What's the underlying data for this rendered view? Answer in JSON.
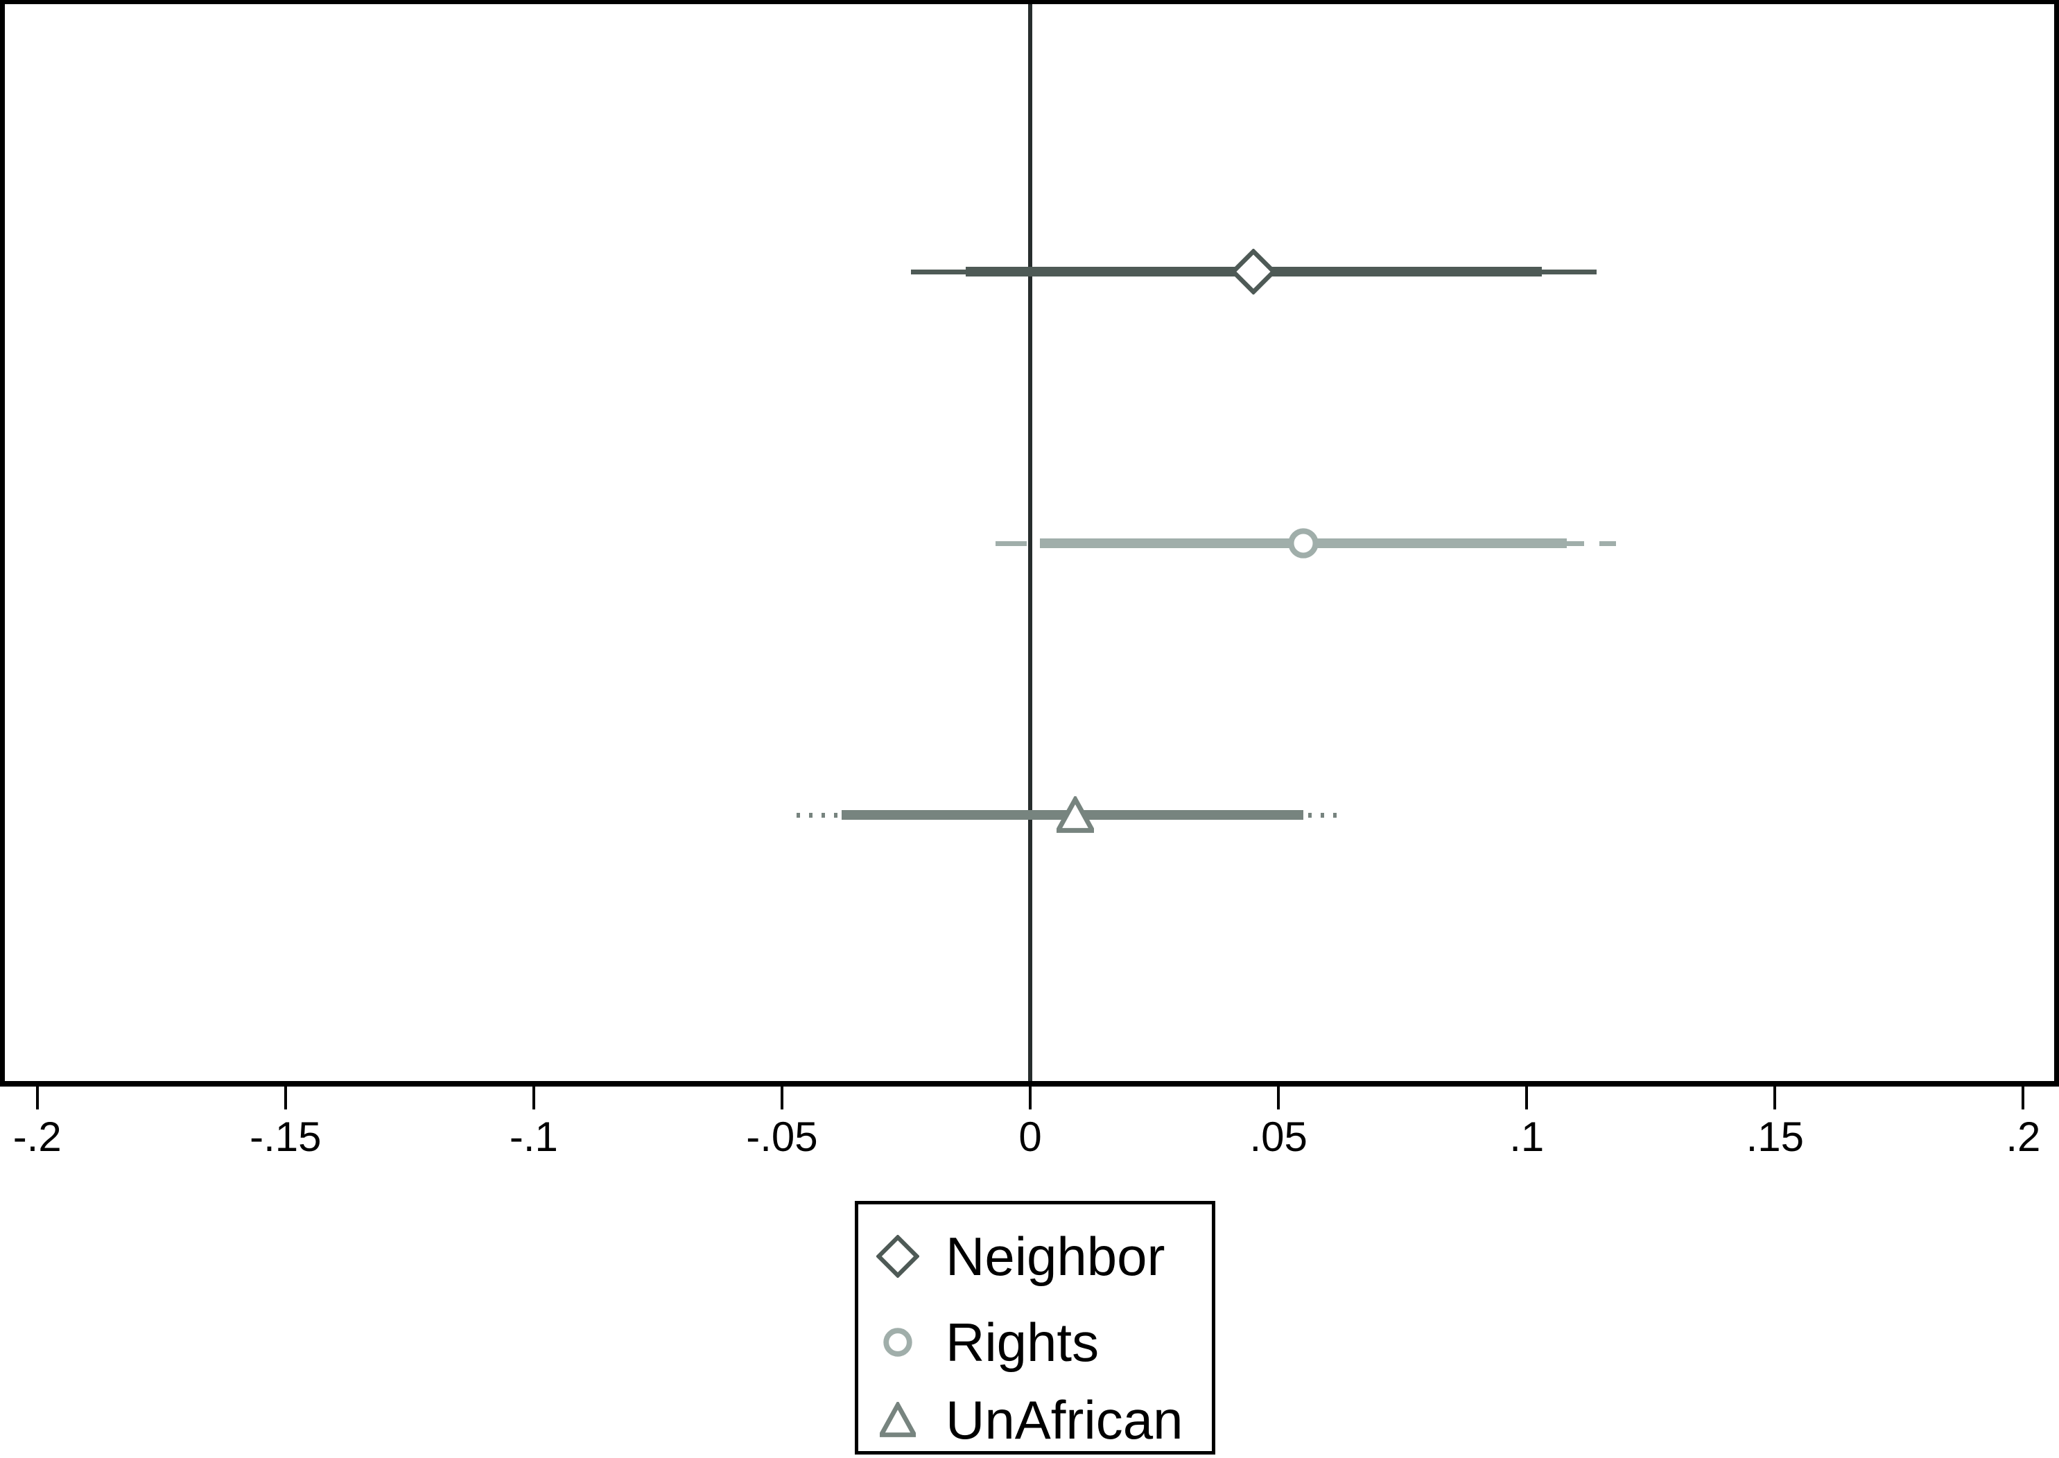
{
  "chart_data": {
    "type": "scatter",
    "subtype": "coefficient-forest-plot",
    "title": "",
    "xlabel": "",
    "ylabel": "",
    "grid": false,
    "background_color": "#ffffff",
    "xlim": [
      -0.2075,
      0.2072
    ],
    "zero_line": 0,
    "x_ticks": {
      "values": [
        -0.2,
        -0.15,
        -0.1,
        -0.05,
        0,
        0.05,
        0.1,
        0.15,
        0.2
      ],
      "labels": [
        "-.2",
        "-.15",
        "-.1",
        "-.05",
        "0",
        ".05",
        ".1",
        ".15",
        ".2"
      ]
    },
    "legend_position": "bottom-center",
    "series": [
      {
        "name": "Neighbor",
        "marker": "diamond",
        "color": "#4e5a56",
        "estimate": 0.045,
        "ci_thick": [
          -0.013,
          0.103
        ],
        "ci_thin": [
          -0.024,
          0.114
        ],
        "thin_line_style": "solid"
      },
      {
        "name": "Rights",
        "marker": "circle",
        "color": "#a0aeaa",
        "estimate": 0.055,
        "ci_thick": [
          0.002,
          0.108
        ],
        "ci_thin": [
          -0.007,
          0.118
        ],
        "thin_line_style": "dashed"
      },
      {
        "name": "UnAfrican",
        "marker": "triangle",
        "color": "#77847f",
        "estimate": 0.009,
        "ci_thick": [
          -0.038,
          0.055
        ],
        "ci_thin": [
          -0.047,
          0.062
        ],
        "thin_line_style": "dotted"
      }
    ],
    "colors": {
      "axis": "#000000",
      "zero_line": "#272d2d",
      "tick_text": "#000000",
      "legend_border": "#000000"
    }
  }
}
